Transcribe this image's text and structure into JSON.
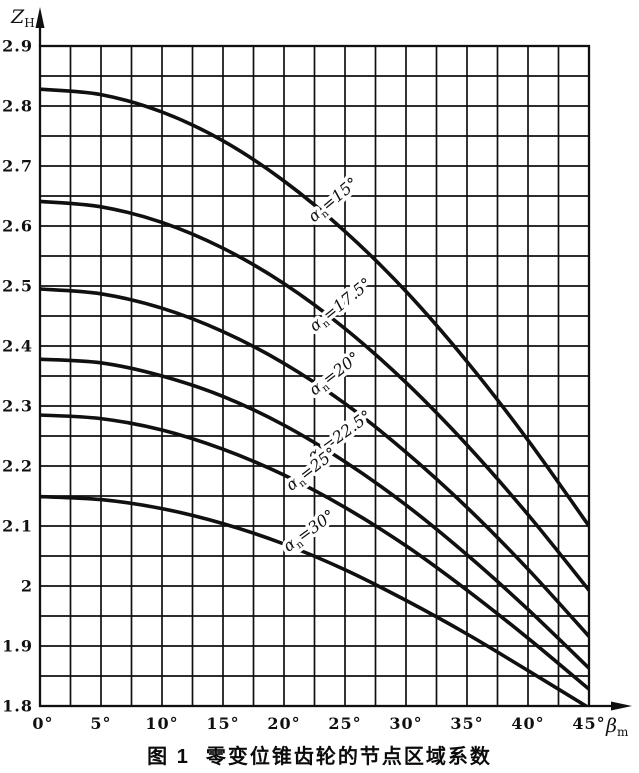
{
  "figure": {
    "caption_prefix": "图 1",
    "caption_title": "零变位锥齿轮的节点区域系数"
  },
  "chart_data": {
    "type": "line",
    "title": "",
    "xlabel": {
      "symbol": "β",
      "subscript": "m"
    },
    "ylabel": {
      "symbol": "Z",
      "subscript": "H"
    },
    "xlim": [
      0,
      45
    ],
    "ylim": [
      1.8,
      2.9
    ],
    "x_grid_step": 2.5,
    "y_grid_step": 0.05,
    "grid": true,
    "legend_position": "labels-on-curves",
    "x_ticks": [
      0,
      5,
      10,
      15,
      20,
      25,
      30,
      35,
      40,
      45
    ],
    "x_tick_labels": [
      "0°",
      "5°",
      "10°",
      "15°",
      "20°",
      "25°",
      "30°",
      "35°",
      "40°",
      "45°"
    ],
    "y_ticks": [
      2.9,
      2.8,
      2.7,
      2.6,
      2.5,
      2.4,
      2.3,
      2.2,
      2.1,
      2.0,
      1.9,
      1.8
    ],
    "y_tick_labels": [
      "2.9",
      "2.8",
      "2.7",
      "2.6",
      "2.5",
      "2.4",
      "2.3",
      "2.2",
      "2.1",
      "2",
      "1.9",
      "1.8"
    ],
    "x": [
      0,
      5,
      10,
      15,
      20,
      25,
      30,
      35,
      40,
      45
    ],
    "series": [
      {
        "name": "an=15",
        "alpha_n": "15",
        "label": {
          "sym": "α",
          "sub": "n",
          "rest": "=15°",
          "x": 24.3,
          "y": 2.637,
          "angle": -40
        },
        "values": [
          2.828,
          2.819,
          2.79,
          2.742,
          2.675,
          2.591,
          2.491,
          2.374,
          2.243,
          2.1
        ]
      },
      {
        "name": "an=17.5",
        "alpha_n": "17.5",
        "label": {
          "sym": "α",
          "sub": "n",
          "rest": "=17.5°",
          "x": 24.9,
          "y": 2.462,
          "angle": -39
        },
        "values": [
          2.641,
          2.632,
          2.606,
          2.563,
          2.504,
          2.429,
          2.339,
          2.235,
          2.119,
          1.993
        ]
      },
      {
        "name": "an=20",
        "alpha_n": "20",
        "label": {
          "sym": "α",
          "sub": "n",
          "rest": "=20°",
          "x": 24.4,
          "y": 2.347,
          "angle": -38
        },
        "values": [
          2.495,
          2.487,
          2.463,
          2.424,
          2.371,
          2.304,
          2.223,
          2.131,
          2.028,
          1.916
        ]
      },
      {
        "name": "an=22.5",
        "alpha_n": "22.5",
        "label": {
          "sym": "α",
          "sub": "n",
          "rest": "=22.5°",
          "x": 24.8,
          "y": 2.243,
          "angle": -36
        },
        "values": [
          2.378,
          2.372,
          2.35,
          2.316,
          2.268,
          2.207,
          2.135,
          2.052,
          1.961,
          1.863
        ]
      },
      {
        "name": "an=25",
        "alpha_n": "25",
        "label": {
          "sym": "α",
          "sub": "n",
          "rest": "=25°",
          "x": 22.5,
          "y": 2.188,
          "angle": -38
        },
        "values": [
          2.285,
          2.279,
          2.26,
          2.228,
          2.185,
          2.131,
          2.067,
          1.993,
          1.913,
          1.828
        ]
      },
      {
        "name": "an=30",
        "alpha_n": "30",
        "label": {
          "sym": "α",
          "sub": "n",
          "rest": "=30°",
          "x": 22.3,
          "y": 2.085,
          "angle": -36
        },
        "values": [
          2.149,
          2.144,
          2.129,
          2.104,
          2.07,
          2.027,
          1.976,
          1.92,
          1.859,
          1.797
        ]
      }
    ],
    "colors": {
      "ink": "#101010",
      "background": "#ffffff"
    }
  }
}
